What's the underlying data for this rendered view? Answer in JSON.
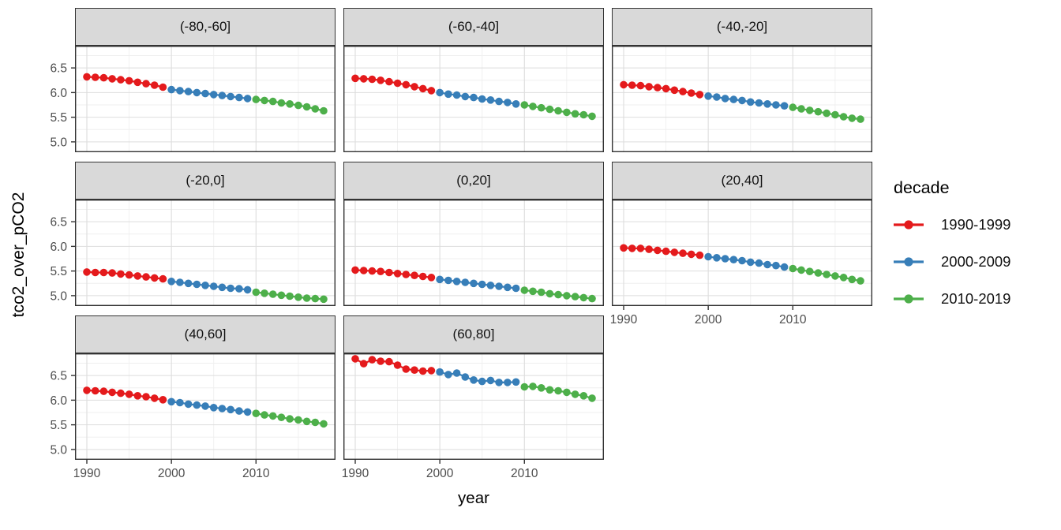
{
  "chart_data": {
    "type": "scatter",
    "title": "",
    "xlabel": "year",
    "ylabel": "tco2_over_pCO2",
    "legend_title": "decade",
    "legend_position": "right",
    "grid": true,
    "x": [
      1990,
      1991,
      1992,
      1993,
      1994,
      1995,
      1996,
      1997,
      1998,
      1999,
      2000,
      2001,
      2002,
      2003,
      2004,
      2005,
      2006,
      2007,
      2008,
      2009,
      2010,
      2011,
      2012,
      2013,
      2014,
      2015,
      2016,
      2017,
      2018
    ],
    "xlim": [
      1988.6,
      2019.4
    ],
    "ylim": [
      4.79,
      6.95
    ],
    "x_ticks": {
      "values": [
        1990,
        2000,
        2010
      ],
      "labels": [
        "1990",
        "2000",
        "2010"
      ]
    },
    "y_ticks": {
      "values": [
        5.0,
        5.5,
        6.0,
        6.5
      ],
      "labels": [
        "5.0",
        "5.5",
        "6.0",
        "6.5"
      ]
    },
    "x_minor_ticks": [
      1995,
      2005,
      2015
    ],
    "y_minor_ticks": [
      5.25,
      5.75,
      6.25,
      6.75
    ],
    "series_groups": [
      {
        "name": "1990-1999",
        "color": "#E41A1C",
        "start_year": 1990,
        "end_year": 1999
      },
      {
        "name": "2000-2009",
        "color": "#377EB8",
        "start_year": 2000,
        "end_year": 2009
      },
      {
        "name": "2010-2019",
        "color": "#4DAF4A",
        "start_year": 2010,
        "end_year": 2018
      }
    ],
    "facets": [
      {
        "label": "(-80,-60]",
        "values": [
          6.32,
          6.31,
          6.3,
          6.28,
          6.26,
          6.24,
          6.21,
          6.18,
          6.15,
          6.11,
          6.06,
          6.04,
          6.02,
          6.0,
          5.98,
          5.96,
          5.94,
          5.92,
          5.9,
          5.88,
          5.86,
          5.84,
          5.82,
          5.79,
          5.77,
          5.74,
          5.71,
          5.67,
          5.63
        ]
      },
      {
        "label": "(-60,-40]",
        "values": [
          6.29,
          6.28,
          6.27,
          6.25,
          6.22,
          6.19,
          6.16,
          6.12,
          6.08,
          6.04,
          6.0,
          5.97,
          5.95,
          5.92,
          5.9,
          5.87,
          5.85,
          5.82,
          5.8,
          5.77,
          5.75,
          5.72,
          5.69,
          5.66,
          5.63,
          5.6,
          5.57,
          5.55,
          5.52
        ]
      },
      {
        "label": "(-40,-20]",
        "values": [
          6.16,
          6.15,
          6.14,
          6.12,
          6.1,
          6.08,
          6.05,
          6.02,
          5.99,
          5.96,
          5.93,
          5.91,
          5.88,
          5.86,
          5.84,
          5.81,
          5.79,
          5.77,
          5.75,
          5.73,
          5.7,
          5.67,
          5.64,
          5.61,
          5.58,
          5.55,
          5.51,
          5.48,
          5.46
        ]
      },
      {
        "label": "(-20,0]",
        "values": [
          5.48,
          5.47,
          5.47,
          5.46,
          5.44,
          5.42,
          5.4,
          5.38,
          5.36,
          5.34,
          5.29,
          5.27,
          5.25,
          5.23,
          5.21,
          5.19,
          5.17,
          5.15,
          5.14,
          5.12,
          5.07,
          5.05,
          5.03,
          5.01,
          4.99,
          4.97,
          4.95,
          4.94,
          4.93
        ]
      },
      {
        "label": "(0,20]",
        "values": [
          5.52,
          5.51,
          5.5,
          5.49,
          5.47,
          5.45,
          5.43,
          5.41,
          5.39,
          5.37,
          5.33,
          5.31,
          5.29,
          5.27,
          5.25,
          5.23,
          5.21,
          5.19,
          5.17,
          5.15,
          5.11,
          5.09,
          5.07,
          5.04,
          5.02,
          5.0,
          4.98,
          4.96,
          4.94
        ]
      },
      {
        "label": "(20,40]",
        "values": [
          5.97,
          5.96,
          5.96,
          5.94,
          5.92,
          5.9,
          5.88,
          5.86,
          5.84,
          5.82,
          5.79,
          5.77,
          5.75,
          5.73,
          5.71,
          5.68,
          5.66,
          5.63,
          5.61,
          5.58,
          5.55,
          5.52,
          5.49,
          5.46,
          5.43,
          5.4,
          5.37,
          5.33,
          5.3
        ]
      },
      {
        "label": "(40,60]",
        "values": [
          6.2,
          6.19,
          6.18,
          6.16,
          6.14,
          6.12,
          6.09,
          6.07,
          6.04,
          6.01,
          5.97,
          5.95,
          5.92,
          5.9,
          5.88,
          5.85,
          5.83,
          5.81,
          5.78,
          5.76,
          5.73,
          5.7,
          5.68,
          5.65,
          5.62,
          5.6,
          5.57,
          5.55,
          5.52
        ]
      },
      {
        "label": "(60,80]",
        "values": [
          6.84,
          6.74,
          6.82,
          6.79,
          6.78,
          6.71,
          6.63,
          6.61,
          6.59,
          6.6,
          6.57,
          6.52,
          6.55,
          6.47,
          6.41,
          6.38,
          6.4,
          6.36,
          6.36,
          6.37,
          6.27,
          6.28,
          6.25,
          6.21,
          6.19,
          6.16,
          6.12,
          6.09,
          6.04
        ]
      }
    ],
    "style_colors": {
      "strip_background": "#d9d9d9",
      "panel_border": "#333333",
      "grid_major": "#dddddd",
      "grid_minor": "#efefef",
      "tick_label": "#4d4d4d"
    }
  }
}
